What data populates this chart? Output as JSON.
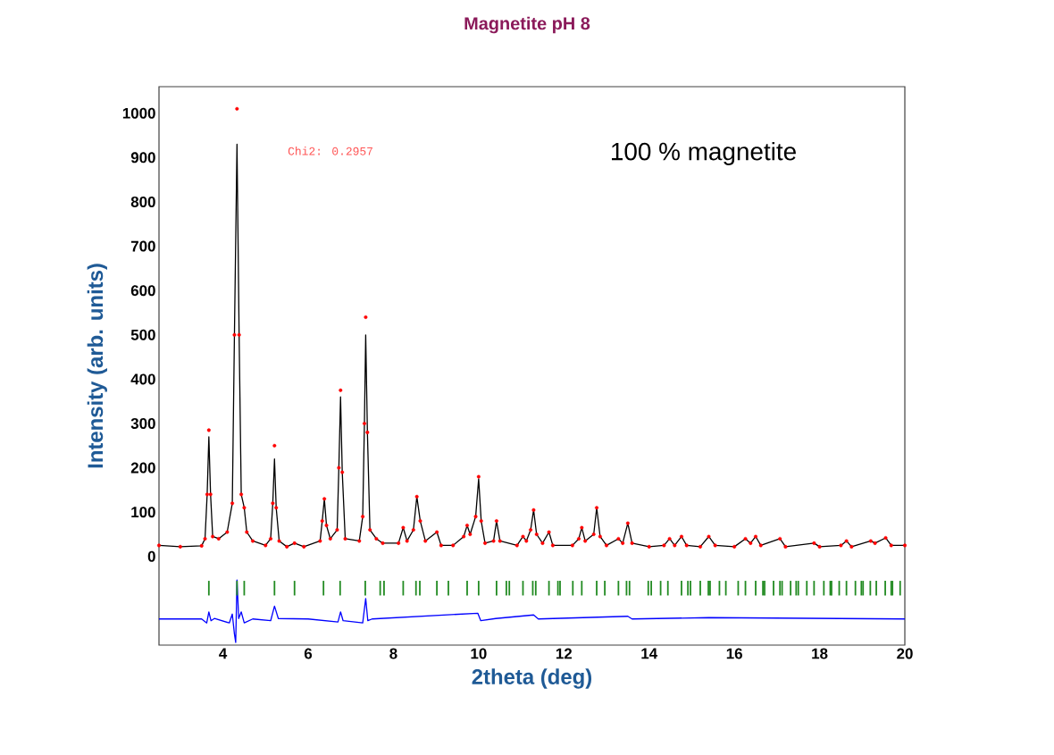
{
  "chart_data": {
    "type": "line",
    "title": "Magnetite pH 8",
    "xlabel": "2theta (deg)",
    "ylabel": "Intensity (arb. units)",
    "annotations": [
      "Chi2: 0.2957",
      "100 % magnetite"
    ],
    "xlim": [
      2.5,
      20
    ],
    "ylim": [
      -200,
      1060
    ],
    "xticks": [
      4,
      6,
      8,
      10,
      12,
      14,
      16,
      18,
      20
    ],
    "yticks": [
      0,
      100,
      200,
      300,
      400,
      500,
      600,
      700,
      800,
      900,
      1000
    ],
    "grid": false,
    "x": [
      2.5,
      3.0,
      3.5,
      3.58,
      3.63,
      3.67,
      3.71,
      3.76,
      3.9,
      4.1,
      4.22,
      4.27,
      4.33,
      4.38,
      4.43,
      4.5,
      4.56,
      4.7,
      5.0,
      5.12,
      5.17,
      5.21,
      5.25,
      5.32,
      5.5,
      5.68,
      5.9,
      6.28,
      6.33,
      6.38,
      6.43,
      6.52,
      6.68,
      6.72,
      6.76,
      6.8,
      6.87,
      7.2,
      7.28,
      7.32,
      7.35,
      7.39,
      7.45,
      7.6,
      7.75,
      8.12,
      8.23,
      8.32,
      8.47,
      8.55,
      8.63,
      8.75,
      9.02,
      9.12,
      9.4,
      9.65,
      9.73,
      9.8,
      9.93,
      10.0,
      10.06,
      10.15,
      10.35,
      10.42,
      10.5,
      10.9,
      11.04,
      11.12,
      11.22,
      11.29,
      11.36,
      11.5,
      11.65,
      11.74,
      12.2,
      12.35,
      12.42,
      12.5,
      12.7,
      12.77,
      12.85,
      13.0,
      13.28,
      13.38,
      13.5,
      13.6,
      14.0,
      14.35,
      14.48,
      14.6,
      14.76,
      14.88,
      15.2,
      15.4,
      15.55,
      16.0,
      16.26,
      16.38,
      16.5,
      16.62,
      17.07,
      17.2,
      17.87,
      18.0,
      18.5,
      18.63,
      18.75,
      19.2,
      19.3,
      19.55,
      19.68,
      20.0
    ],
    "series": [
      {
        "type": "scatter",
        "marker": "circle",
        "color": "#ff0000",
        "values": [
          25,
          22,
          24,
          40,
          140,
          285,
          140,
          45,
          40,
          55,
          120,
          500,
          1010,
          500,
          140,
          110,
          55,
          35,
          25,
          40,
          120,
          250,
          110,
          35,
          22,
          30,
          22,
          35,
          80,
          130,
          70,
          40,
          60,
          200,
          375,
          190,
          40,
          35,
          90,
          300,
          540,
          280,
          60,
          40,
          30,
          30,
          65,
          35,
          60,
          135,
          80,
          35,
          55,
          25,
          25,
          45,
          70,
          50,
          90,
          180,
          80,
          30,
          35,
          80,
          35,
          25,
          45,
          35,
          60,
          105,
          50,
          30,
          55,
          25,
          25,
          40,
          65,
          35,
          50,
          110,
          45,
          25,
          40,
          30,
          75,
          30,
          22,
          25,
          40,
          25,
          45,
          25,
          22,
          45,
          25,
          22,
          40,
          30,
          45,
          25,
          40,
          22,
          30,
          22,
          25,
          35,
          22,
          35,
          30,
          42,
          25,
          25
        ]
      },
      {
        "line_style": "solid",
        "color": "#000000",
        "values": [
          25,
          22,
          24,
          40,
          140,
          270,
          140,
          45,
          40,
          55,
          120,
          500,
          930,
          500,
          140,
          110,
          55,
          35,
          25,
          40,
          120,
          220,
          110,
          35,
          22,
          30,
          22,
          35,
          80,
          130,
          70,
          40,
          60,
          200,
          360,
          190,
          40,
          35,
          90,
          300,
          500,
          280,
          60,
          40,
          30,
          30,
          65,
          35,
          60,
          135,
          80,
          35,
          55,
          25,
          25,
          45,
          70,
          50,
          90,
          175,
          80,
          30,
          35,
          80,
          35,
          25,
          45,
          35,
          60,
          105,
          50,
          30,
          55,
          25,
          25,
          40,
          65,
          35,
          50,
          110,
          45,
          25,
          40,
          30,
          75,
          30,
          22,
          25,
          40,
          25,
          45,
          25,
          22,
          45,
          25,
          22,
          40,
          30,
          45,
          25,
          40,
          22,
          30,
          22,
          25,
          35,
          22,
          35,
          30,
          42,
          25,
          25
        ]
      },
      {
        "type": "bar",
        "color": "#228b22",
        "x": [
          3.67,
          4.33,
          4.5,
          5.21,
          5.68,
          6.36,
          6.75,
          7.34,
          7.69,
          7.78,
          8.23,
          8.53,
          8.62,
          9.02,
          9.29,
          9.73,
          10.0,
          10.42,
          10.65,
          10.72,
          11.04,
          11.27,
          11.34,
          11.65,
          11.86,
          11.91,
          12.21,
          12.42,
          12.77,
          12.96,
          13.28,
          13.47,
          13.54,
          13.98,
          14.05,
          14.27,
          14.44,
          14.76,
          14.91,
          14.97,
          15.2,
          15.39,
          15.43,
          15.65,
          15.8,
          16.09,
          16.26,
          16.5,
          16.67,
          16.71,
          16.92,
          17.07,
          17.12,
          17.32,
          17.45,
          17.5,
          17.7,
          17.87,
          18.1,
          18.25,
          18.28,
          18.46,
          18.63,
          18.84,
          18.98,
          19.02,
          19.19,
          19.33,
          19.54,
          19.68,
          19.71,
          19.89
        ],
        "base": [
          -88,
          -88,
          -88,
          -88,
          -88,
          -88,
          -88,
          -88,
          -88,
          -88,
          -88,
          -88,
          -88,
          -88,
          -88,
          -88,
          -88,
          -88,
          -88,
          -88,
          -88,
          -88,
          -88,
          -88,
          -88,
          -88,
          -88,
          -88,
          -88,
          -88,
          -88,
          -88,
          -88,
          -88,
          -88,
          -88,
          -88,
          -88,
          -88,
          -88,
          -88,
          -88,
          -88,
          -88,
          -88,
          -88,
          -88,
          -88,
          -88,
          -88,
          -88,
          -88,
          -88,
          -88,
          -88,
          -88,
          -88,
          -88,
          -88,
          -88,
          -88,
          -88,
          -88,
          -88,
          -88,
          -88,
          -88,
          -88,
          -88,
          -88,
          -88,
          -88
        ],
        "values": [
          33,
          33,
          33,
          33,
          33,
          33,
          33,
          33,
          33,
          33,
          33,
          33,
          33,
          33,
          33,
          33,
          33,
          33,
          33,
          33,
          33,
          33,
          33,
          33,
          33,
          33,
          33,
          33,
          33,
          33,
          33,
          33,
          33,
          33,
          33,
          33,
          33,
          33,
          33,
          33,
          33,
          33,
          33,
          33,
          33,
          33,
          33,
          33,
          33,
          33,
          33,
          33,
          33,
          33,
          33,
          33,
          33,
          33,
          33,
          33,
          33,
          33,
          33,
          33,
          33,
          33,
          33,
          33,
          33,
          33,
          33,
          33
        ]
      },
      {
        "line_style": "solid",
        "color": "#0000ff",
        "x": [
          2.5,
          3.5,
          3.62,
          3.67,
          3.72,
          3.8,
          4.15,
          4.22,
          4.27,
          4.3,
          4.33,
          4.37,
          4.43,
          4.5,
          4.7,
          5.12,
          5.21,
          5.3,
          6.0,
          6.7,
          6.76,
          6.82,
          7.28,
          7.35,
          7.4,
          7.5,
          9.98,
          10.05,
          10.4,
          11.29,
          11.4,
          13.5,
          13.6,
          15.4,
          20.0
        ],
        "values": [
          -141,
          -141,
          -150,
          -125,
          -145,
          -140,
          -150,
          -130,
          -175,
          -194,
          -53,
          -140,
          -125,
          -150,
          -141,
          -145,
          -112,
          -140,
          -141,
          -148,
          -125,
          -145,
          -150,
          -95,
          -145,
          -141,
          -128,
          -145,
          -140,
          -132,
          -141,
          -135,
          -141,
          -138,
          -141
        ]
      }
    ]
  }
}
